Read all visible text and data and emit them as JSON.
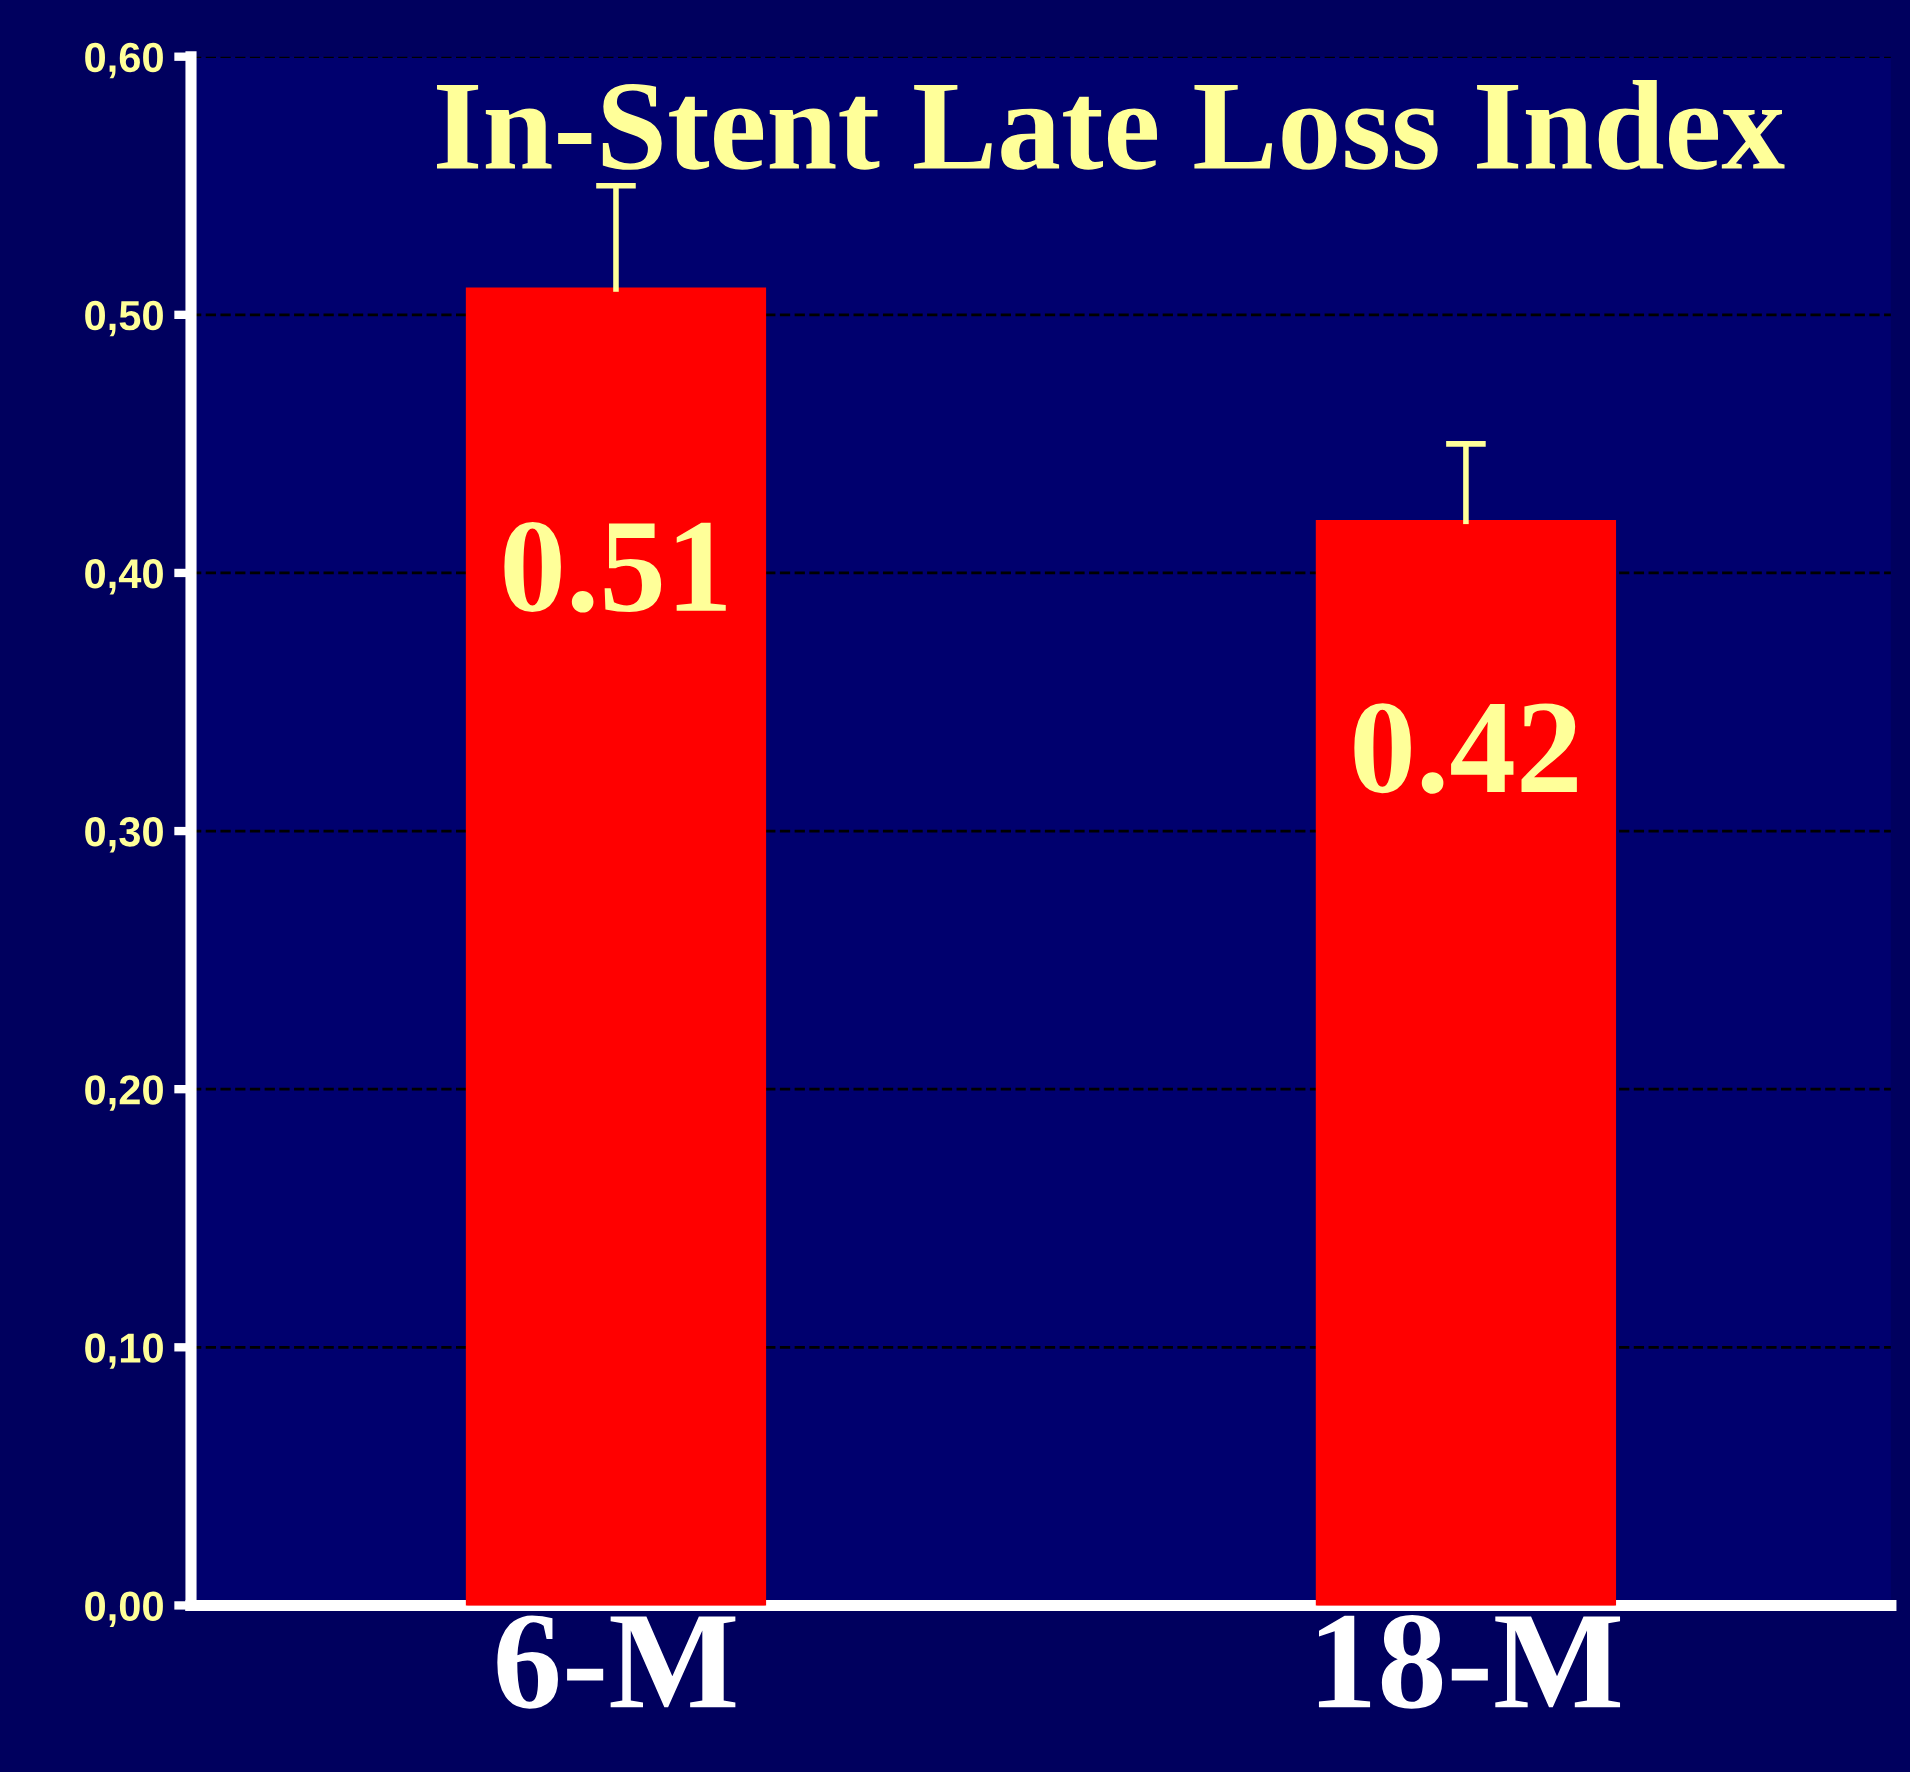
{
  "chart_data": {
    "type": "bar",
    "title": "In-Stent Late Loss Index",
    "categories": [
      "6-M",
      "18-M"
    ],
    "values": [
      0.51,
      0.42
    ],
    "errors": [
      [
        0.51,
        0.55
      ],
      [
        0.42,
        0.45
      ]
    ],
    "color": "#ff0000",
    "data_labels": true,
    "ylim": [
      0,
      0.6
    ],
    "yticks": [
      {
        "value": 0,
        "label": "0,00"
      },
      {
        "value": 0.1,
        "label": "0,10"
      },
      {
        "value": 0.2,
        "label": "0,20"
      },
      {
        "value": 0.3,
        "label": "0,30"
      },
      {
        "value": 0.4,
        "label": "0,40"
      },
      {
        "value": 0.5,
        "label": "0,50"
      },
      {
        "value": 0.6,
        "label": "0,60"
      }
    ],
    "grid": "y",
    "legend": false
  }
}
